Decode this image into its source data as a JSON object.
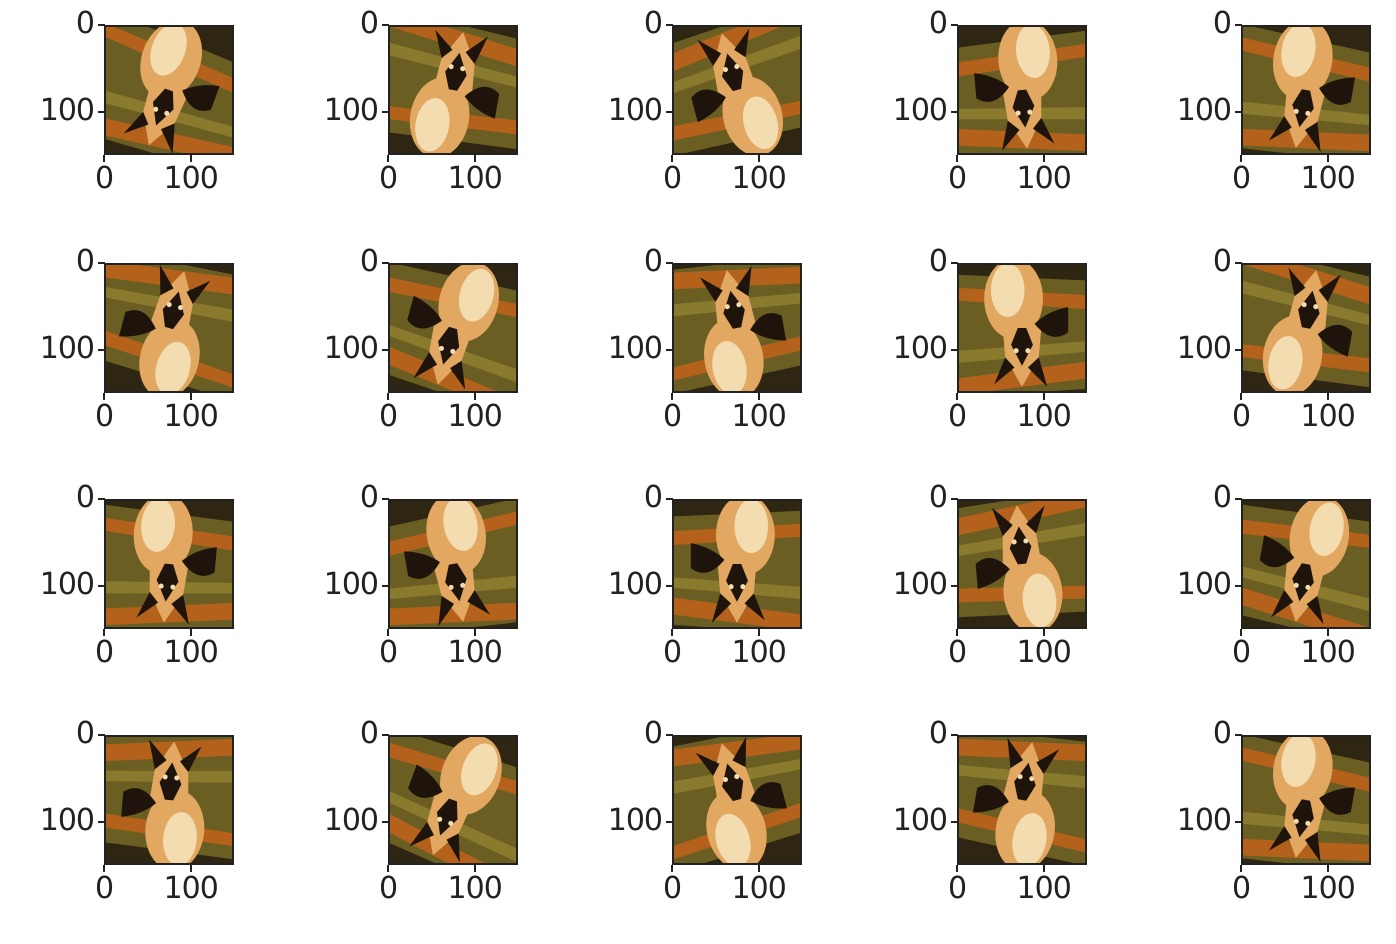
{
  "chart_data": {
    "type": "image_grid",
    "rows": 4,
    "cols": 5,
    "image_content": "german-shepherd-dog-augmented",
    "xlim": [
      0,
      150
    ],
    "ylim": [
      0,
      150
    ],
    "x_ticks": [
      0,
      100
    ],
    "y_ticks": [
      0,
      100
    ],
    "x_tick_labels": [
      "0",
      "100"
    ],
    "y_tick_labels": [
      "0",
      "100"
    ],
    "palette": {
      "background": "#6b5e22",
      "stripe_light": "#8a7a2e",
      "stripe_orange": "#b4611c",
      "stripe_dark": "#2e2612",
      "dog_tan": "#e2a862",
      "dog_cream": "#f3dcb0",
      "dog_dark": "#1e140c",
      "axis": "#222222"
    },
    "subplots": [
      {
        "rotation": 200,
        "flip": false
      },
      {
        "rotation": 10,
        "flip": true
      },
      {
        "rotation": 345,
        "flip": false
      },
      {
        "rotation": 175,
        "flip": true
      },
      {
        "rotation": 190,
        "flip": false
      },
      {
        "rotation": 15,
        "flip": false
      },
      {
        "rotation": 195,
        "flip": true
      },
      {
        "rotation": 350,
        "flip": true
      },
      {
        "rotation": 180,
        "flip": false
      },
      {
        "rotation": 10,
        "flip": true
      },
      {
        "rotation": 185,
        "flip": false
      },
      {
        "rotation": 170,
        "flip": true
      },
      {
        "rotation": 180,
        "flip": true
      },
      {
        "rotation": 355,
        "flip": false
      },
      {
        "rotation": 190,
        "flip": true
      },
      {
        "rotation": 5,
        "flip": false
      },
      {
        "rotation": 200,
        "flip": true
      },
      {
        "rotation": 345,
        "flip": true
      },
      {
        "rotation": 10,
        "flip": false
      },
      {
        "rotation": 190,
        "flip": false
      }
    ]
  }
}
